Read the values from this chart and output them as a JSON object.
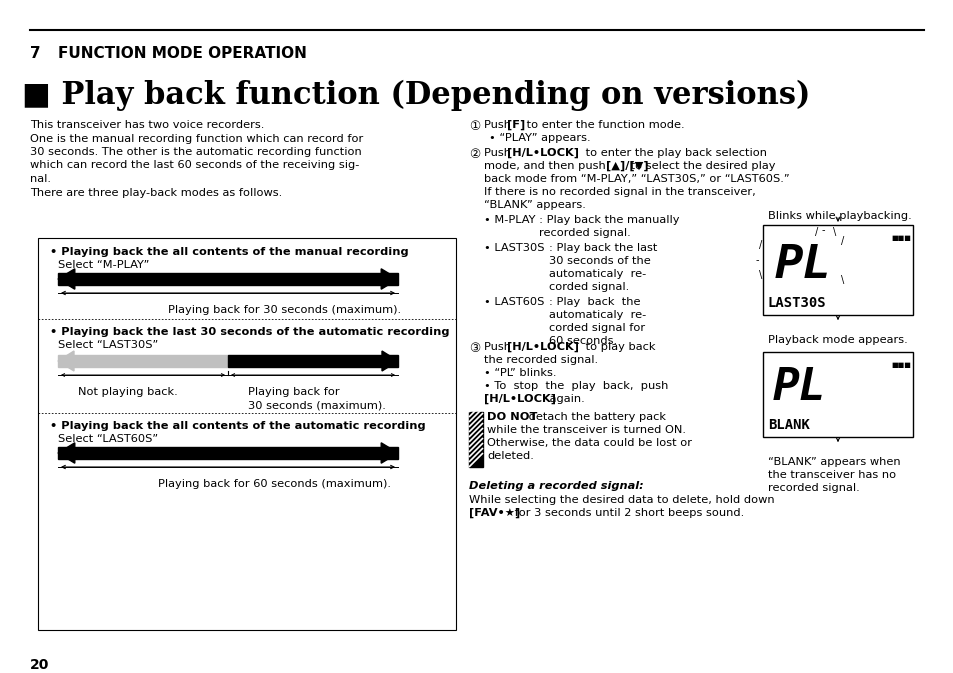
{
  "bg_color": "#ffffff",
  "page_number": "20",
  "title_num": "7",
  "chapter_title": "FUNCTION MODE OPERATION",
  "section_title": "■ Play back function (Depending on versions)",
  "intro_lines": [
    "This transceiver has two voice recorders.",
    "One is the manual recording function which can record for",
    "30 seconds. The other is the automatic recording function",
    "which can record the last 60 seconds of the receiving sig-",
    "nal.",
    "There are three play-back modes as follows."
  ],
  "box_sec1_header": "• Playing back the all contents of the manual recording",
  "box_sec1_label": "Select “M-PLAY”",
  "box_sec1_caption": "Playing back for 30 seconds (maximum).",
  "box_sec2_header": "• Playing back the last 30 seconds of the automatic recording",
  "box_sec2_label": "Select “LAST30S”",
  "box_sec2_cap_left": "Not playing back.",
  "box_sec2_cap_right1": "Playing back for",
  "box_sec2_cap_right2": "30 seconds (maximum).",
  "box_sec3_header": "• Playing back the all contents of the automatic recording",
  "box_sec3_label": "Select “LAST60S”",
  "box_sec3_caption": "Playing back for 60 seconds (maximum).",
  "step1_circ": "¹",
  "step1_a": "Push ",
  "step1_b": "[F]",
  "step1_c": " to enter the function mode.",
  "step1_sub": "• “PLAY” appears.",
  "step2_circ": "²",
  "step2_a": "Push ",
  "step2_b": "[H/L•LOCK]",
  "step2_c": " to enter the play back selection",
  "step2_d": "mode, and then push ",
  "step2_e": "[▲]/[▼]",
  "step2_f": " to select the desired play",
  "step2_g": "back mode from “M-PLAY,” “LAST30S,” or “LAST60S.”",
  "step2_h": "If there is no recorded signal in the transceiver,",
  "step2_i": "“BLANK” appears.",
  "bullet_mplay1": "• M-PLAY : Play back the manually",
  "bullet_mplay2": "recorded signal.",
  "bullet_last30s_1": "• LAST30S",
  "bullet_last30s_2": ": Play back the last",
  "bullet_last30s_3": "30 seconds of the",
  "bullet_last30s_4": "automaticaly  re-",
  "bullet_last30s_5": "corded signal.",
  "bullet_last60s_1": "• LAST60S",
  "bullet_last60s_2": ": Play  back  the",
  "bullet_last60s_3": "automaticaly  re-",
  "bullet_last60s_4": "corded signal for",
  "bullet_last60s_5": "60 seconds.",
  "blinks_label": "Blinks while playbacking.",
  "playback_mode_label": "Playback mode appears.",
  "step3_circ": "³",
  "step3_a": "Push ",
  "step3_b": "[H/L•LOCK]",
  "step3_c": " to play back",
  "step3_d": "the recorded signal.",
  "step3_e": "• “PL” blinks.",
  "step3_f": "• To  stop  the  play  back,  push",
  "step3_g": "[H/L•LOCK]",
  "step3_h": " again.",
  "warn1": "DO NOT",
  "warn2": " detach the battery pack",
  "warn3": "while the transceiver is turned ON.",
  "warn4": "Otherwise, the data could be lost or",
  "warn5": "deleted.",
  "blank_cap1": "“BLANK” appears when",
  "blank_cap2": "the transceiver has no",
  "blank_cap3": "recorded signal.",
  "del_header": "Deleting a recorded signal:",
  "del_line1": "While selecting the desired data to delete, hold down",
  "del_line2a": "[FAV•★]",
  "del_line2b": " for 3 seconds until 2 short beeps sound."
}
